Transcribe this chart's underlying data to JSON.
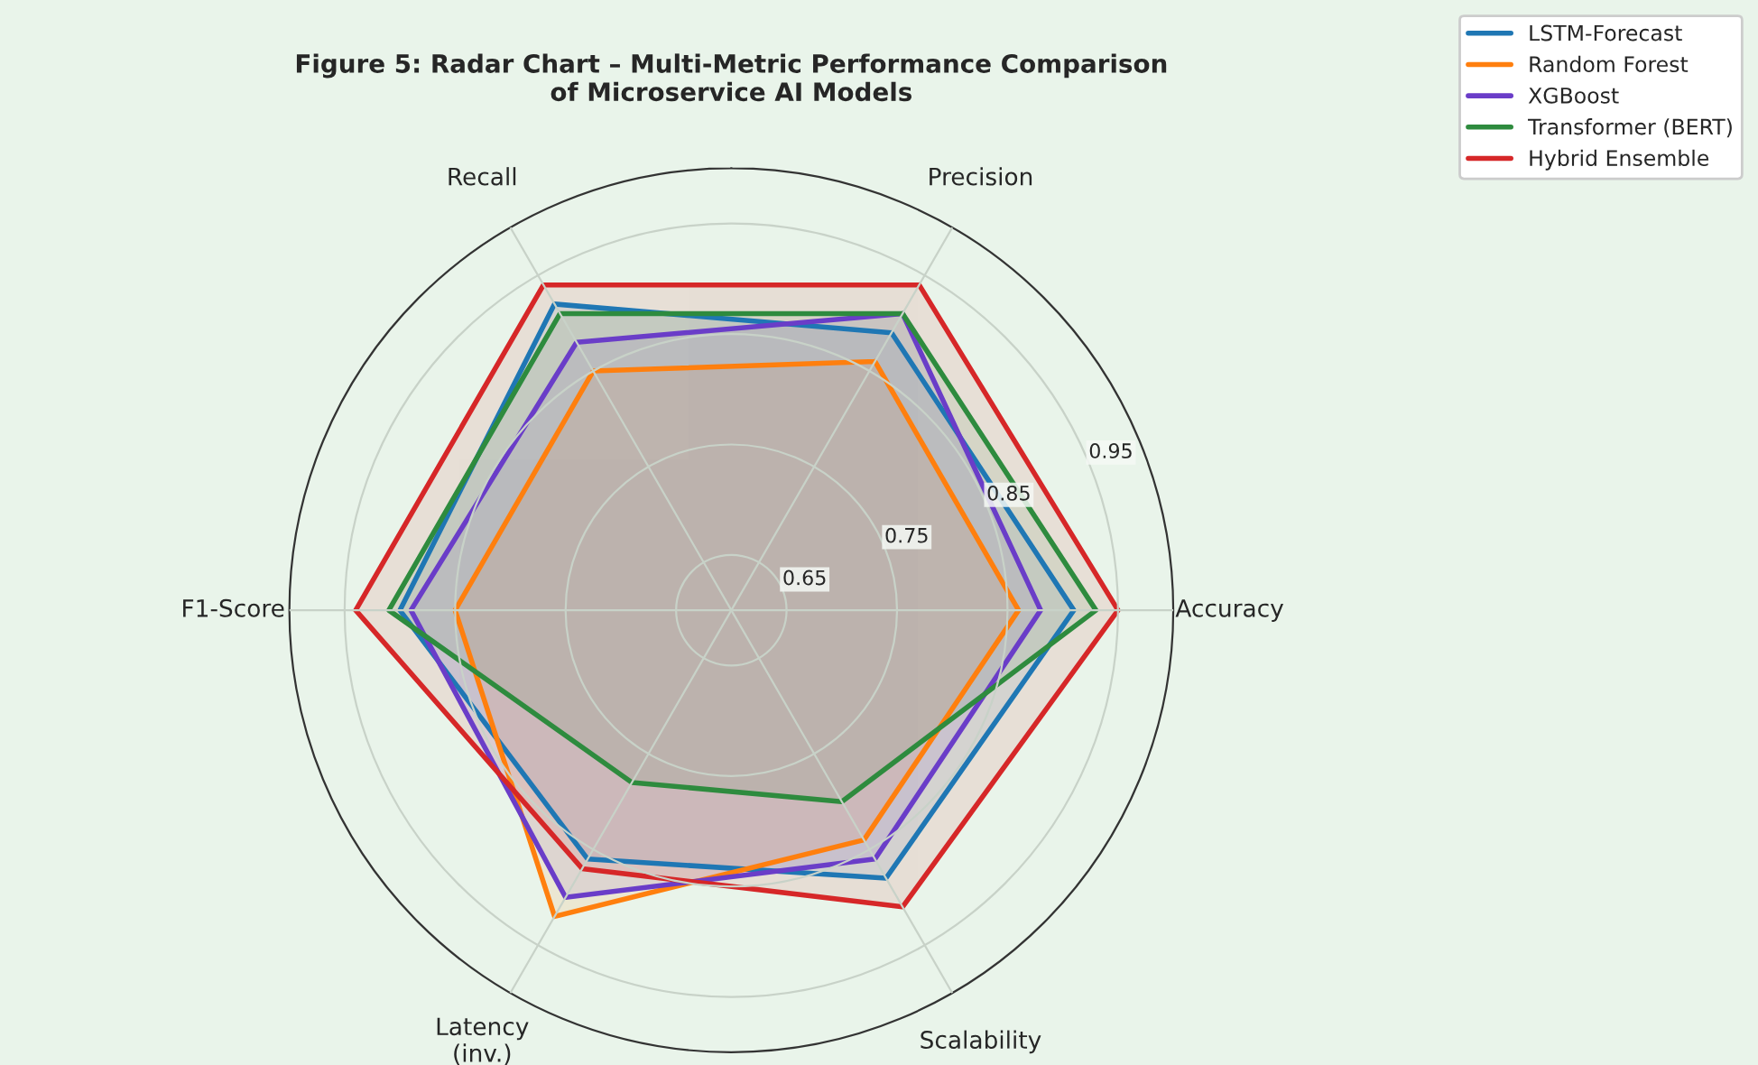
{
  "chart_data": {
    "type": "radar",
    "title": "Figure 5: Radar Chart – Multi-Metric Performance Comparison\nof Microservice AI Models",
    "categories": [
      "Precision",
      "Accuracy",
      "Scalability",
      "Latency\n(inv.)",
      "F1-Score",
      "Recall"
    ],
    "ylim": [
      0.6,
      1.0
    ],
    "yticks": [
      0.65,
      0.75,
      0.85,
      0.95
    ],
    "grid": true,
    "legend": "top right",
    "series": [
      {
        "name": "LSTM-Forecast",
        "color": "#1f77b4",
        "values": [
          0.89,
          0.91,
          0.88,
          0.86,
          0.9,
          0.92
        ]
      },
      {
        "name": "Random Forest",
        "color": "#ff7f0e",
        "values": [
          0.86,
          0.86,
          0.84,
          0.92,
          0.85,
          0.85
        ]
      },
      {
        "name": "XGBoost",
        "color": "#6a3dc8",
        "values": [
          0.91,
          0.88,
          0.86,
          0.9,
          0.89,
          0.88
        ]
      },
      {
        "name": "Transformer (BERT)",
        "color": "#2e8b3e",
        "values": [
          0.91,
          0.93,
          0.8,
          0.78,
          0.91,
          0.91
        ]
      },
      {
        "name": "Hybrid Ensemble",
        "color": "#d62728",
        "values": [
          0.94,
          0.95,
          0.91,
          0.87,
          0.94,
          0.94
        ]
      }
    ]
  }
}
